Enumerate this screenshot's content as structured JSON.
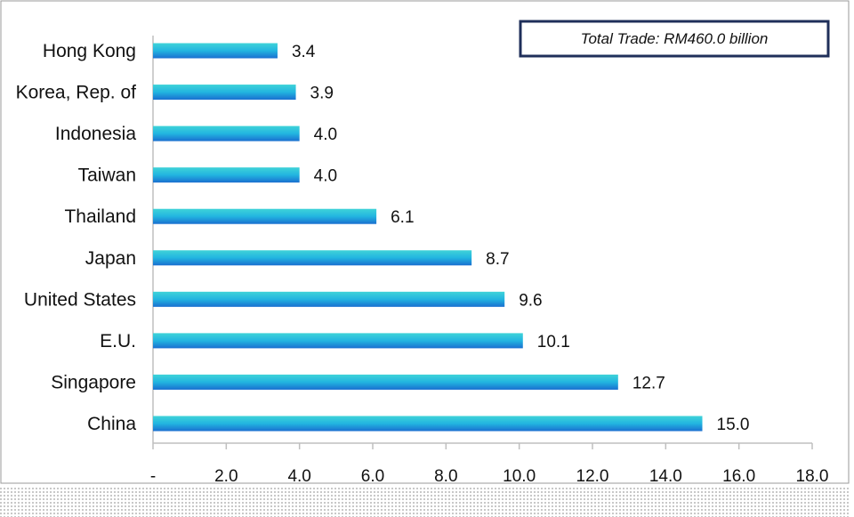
{
  "chart_data": {
    "type": "bar",
    "orientation": "horizontal",
    "categories": [
      "Hong Kong",
      "Korea, Rep. of",
      "Indonesia",
      "Taiwan",
      "Thailand",
      "Japan",
      "United States",
      "E.U.",
      "Singapore",
      "China"
    ],
    "values": [
      3.4,
      3.9,
      4.0,
      4.0,
      6.1,
      8.7,
      9.6,
      10.1,
      12.7,
      15.0
    ],
    "value_labels": [
      "3.4",
      "3.9",
      "4.0",
      "4.0",
      "6.1",
      "8.7",
      "9.6",
      "10.1",
      "12.7",
      "15.0"
    ],
    "xlim": [
      0,
      18
    ],
    "x_ticks": [
      "-",
      "2.0",
      "4.0",
      "6.0",
      "8.0",
      "10.0",
      "12.0",
      "14.0",
      "16.0",
      "18.0"
    ],
    "annotation": "Total Trade: RM460.0 billion",
    "grid": false,
    "legend": "none",
    "colors": {
      "bar_top": "#3fd3d8",
      "bar_mid": "#22b5e0",
      "bar_bottom": "#1a6fd0",
      "axis": "#bfbfbf",
      "box_border": "#1f2f5a",
      "frame": "#9a9a9a"
    }
  }
}
